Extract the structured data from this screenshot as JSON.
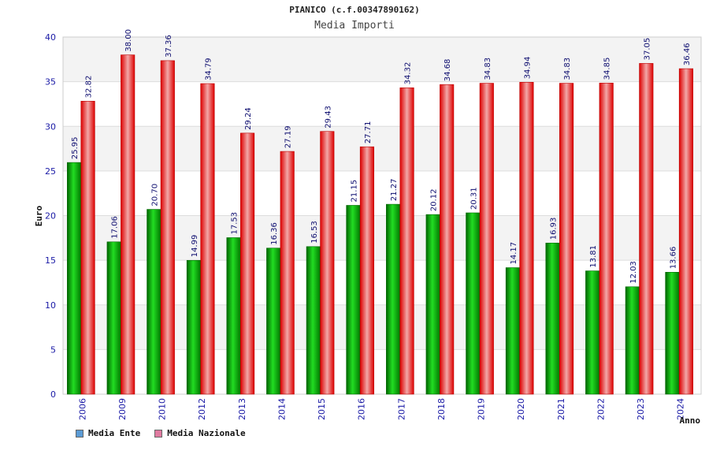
{
  "chart_data": {
    "type": "bar",
    "title": "PIANICO (c.f.00347890162)",
    "subtitle": "Media Importi",
    "xlabel": "Anno",
    "ylabel": "Euro",
    "ylim": [
      0,
      40
    ],
    "yticks": [
      "0",
      "5",
      "10",
      "15",
      "20",
      "25",
      "30",
      "35",
      "40"
    ],
    "categories": [
      "2006",
      "2009",
      "2010",
      "2012",
      "2013",
      "2014",
      "2015",
      "2016",
      "2017",
      "2018",
      "2019",
      "2020",
      "2021",
      "2022",
      "2023",
      "2024"
    ],
    "series": [
      {
        "name": "Media Ente",
        "color": "#00aa00",
        "legend_color": "#5b9bd5",
        "values": [
          25.95,
          17.06,
          20.7,
          14.99,
          17.53,
          16.36,
          16.53,
          21.15,
          21.27,
          20.12,
          20.31,
          14.17,
          16.93,
          13.81,
          12.03,
          13.66
        ],
        "labels": [
          "25.95",
          "17.06",
          "20.70",
          "14.99",
          "17.53",
          "16.36",
          "16.53",
          "21.15",
          "21.27",
          "20.12",
          "20.31",
          "14.17",
          "16.93",
          "13.81",
          "12.03",
          "13.66"
        ]
      },
      {
        "name": "Media Nazionale",
        "color": "#ee1111",
        "legend_color": "#e07aa0",
        "values": [
          32.82,
          38.0,
          37.36,
          34.79,
          29.24,
          27.19,
          29.43,
          27.71,
          34.32,
          34.68,
          34.83,
          34.94,
          34.83,
          34.85,
          37.05,
          36.46
        ],
        "labels": [
          "32.82",
          "38.00",
          "37.36",
          "34.79",
          "29.24",
          "27.19",
          "29.43",
          "27.71",
          "34.32",
          "34.68",
          "34.83",
          "34.94",
          "34.83",
          "34.85",
          "37.05",
          "36.46"
        ]
      }
    ],
    "grid": true,
    "legend_position": "bottom-left"
  }
}
